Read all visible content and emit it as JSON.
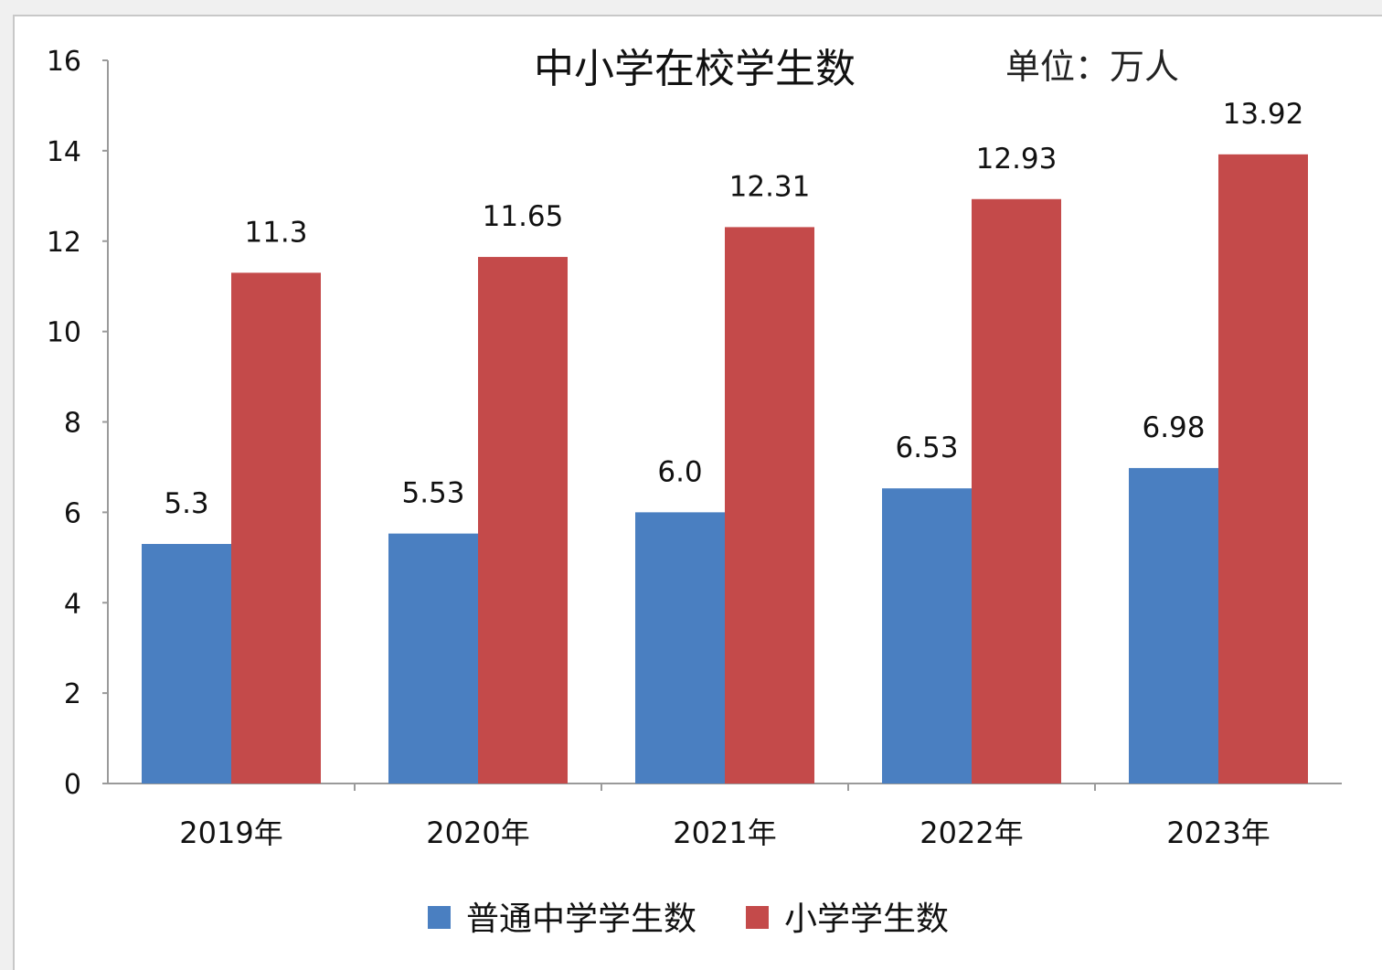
{
  "chart_data": {
    "type": "bar",
    "title": "中小学在校学生数",
    "unit": "单位：万人",
    "categories": [
      "2019年",
      "2020年",
      "2021年",
      "2022年",
      "2023年"
    ],
    "series": [
      {
        "name": "普通中学学生数",
        "color": "#4a7fc1",
        "values": [
          5.3,
          5.53,
          6.0,
          6.53,
          6.98
        ],
        "labels": [
          "5.3",
          "5.53",
          "6.0",
          "6.53",
          "6.98"
        ]
      },
      {
        "name": "小学学生数",
        "color": "#c44a4a",
        "values": [
          11.3,
          11.65,
          12.31,
          12.93,
          13.92
        ],
        "labels": [
          "11.3",
          "11.65",
          "12.31",
          "12.93",
          "13.92"
        ]
      }
    ],
    "ylim": [
      0,
      16
    ],
    "yticks": [
      0,
      2,
      4,
      6,
      8,
      10,
      12,
      14,
      16
    ],
    "grid": false,
    "legend": "bottom"
  }
}
